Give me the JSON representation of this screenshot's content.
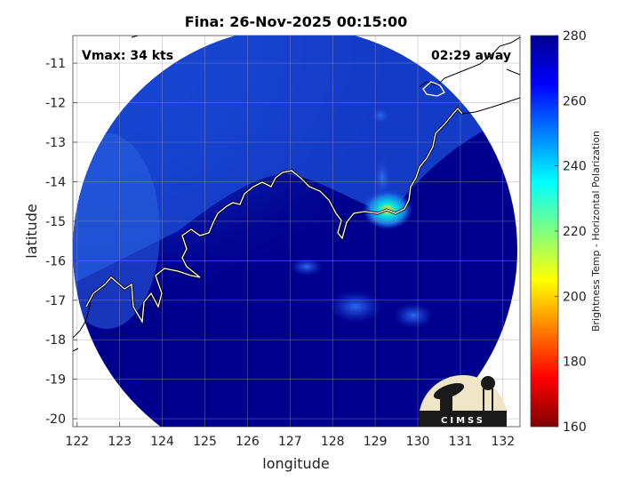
{
  "chart_data": {
    "type": "heatmap",
    "title": "Fina: 26-Nov-2025 00:15:00",
    "annotations": {
      "vmax": "Vmax: 34 kts",
      "away": "02:29 away"
    },
    "xlabel": "longitude",
    "ylabel": "latitude",
    "xlim": [
      121.9,
      132.4
    ],
    "ylim": [
      -20.2,
      -10.3
    ],
    "x_ticks": [
      122,
      123,
      124,
      125,
      126,
      127,
      128,
      129,
      130,
      131,
      132
    ],
    "y_ticks": [
      -11,
      -12,
      -13,
      -14,
      -15,
      -16,
      -17,
      -18,
      -19,
      -20
    ],
    "grid": true,
    "colorbar": {
      "label": "Brightness Temp - Horizontal Polarization",
      "range": [
        160,
        280
      ],
      "ticks": [
        280,
        260,
        240,
        220,
        200,
        180,
        160
      ],
      "colormap": "jet"
    },
    "swath": {
      "shape": "circle",
      "center": [
        127.1,
        -15.7
      ],
      "background_value": 273,
      "features": [
        {
          "region": "north-west swath",
          "approx_value": 262
        },
        {
          "region": "west edge over land",
          "approx_value": 252
        },
        {
          "region": "warm spot near 129.2E 14.8S",
          "approx_value": 228
        },
        {
          "region": "scattered spots 128-129.5E 16.5-17.5S",
          "approx_value": 258
        }
      ]
    },
    "logo": "CIMSS"
  },
  "colors": {
    "background": "#ffffff",
    "swath_dark": "#00008f",
    "swath_light": "#1d4fd6"
  }
}
